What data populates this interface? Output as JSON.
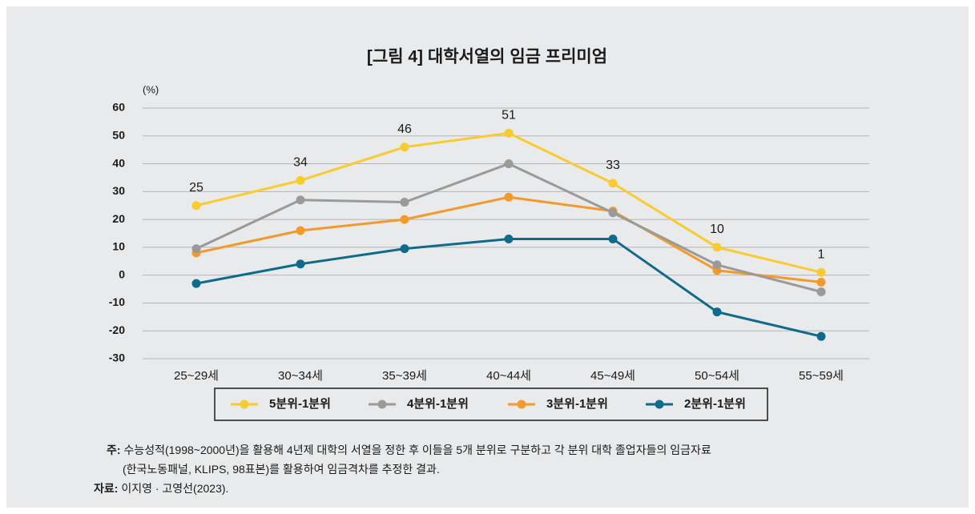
{
  "chart_data": {
    "type": "line",
    "title": "[그림 4] 대학서열의 임금 프리미엄",
    "y_unit": "(%)",
    "categories": [
      "25~29세",
      "30~34세",
      "35~39세",
      "40~44세",
      "45~49세",
      "50~54세",
      "55~59세"
    ],
    "series": [
      {
        "name": "5분위-1분위",
        "color": "#f8cb30",
        "values": [
          25,
          34,
          46,
          51,
          33,
          10,
          1
        ],
        "data_labels": true
      },
      {
        "name": "4분위-1분위",
        "color": "#9a9a9a",
        "values": [
          9.5,
          27,
          26.2,
          40,
          22.4,
          3.7,
          -6
        ]
      },
      {
        "name": "3분위-1분위",
        "color": "#f39a2b",
        "values": [
          8,
          16,
          20,
          28,
          23,
          1.7,
          -2.5
        ]
      },
      {
        "name": "2분위-1분위",
        "color": "#0f6b8c",
        "values": [
          -3,
          4,
          9.5,
          13,
          13,
          -13.2,
          -22
        ]
      }
    ],
    "ylim": [
      -30,
      60
    ],
    "yticks": [
      -30,
      -20,
      -10,
      0,
      10,
      20,
      30,
      40,
      50,
      60
    ],
    "grid": true,
    "legend": "bottom"
  },
  "notes": {
    "label": "주:",
    "line1": "수능성적(1998~2000년)을 활용해 4년제 대학의 서열을 정한 후 이들을 5개 분위로 구분하고 각 분위 대학 졸업자들의 임금자료",
    "line2": "(한국노동패널, KLIPS, 98표본)를 활용하여 임금격차를 추정한 결과."
  },
  "source": {
    "label": "자료:",
    "text": "이지영 · 고영선(2023)."
  }
}
